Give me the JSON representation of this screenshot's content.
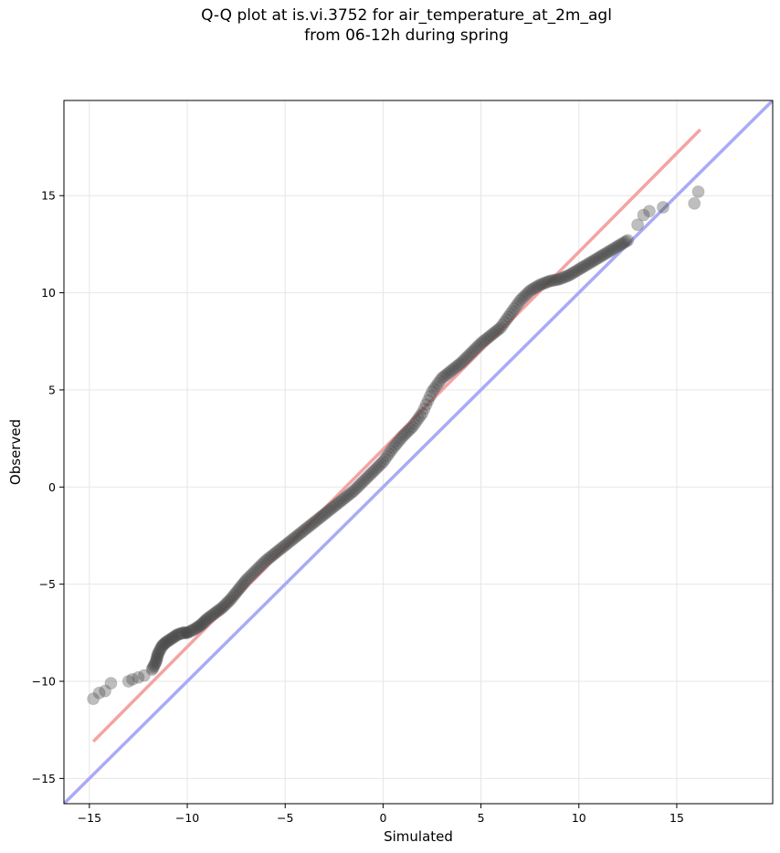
{
  "chart_data": {
    "type": "scatter",
    "title_line1": "Q-Q plot at is.vi.3752 for air_temperature_at_2m_agl",
    "title_line2": "from 06-12h during spring",
    "xlabel": "Simulated",
    "ylabel": "Observed",
    "xlim": [
      -16.3,
      19.9
    ],
    "ylim": [
      -16.3,
      19.9
    ],
    "xticks": [
      -15,
      -10,
      -5,
      0,
      5,
      10,
      15
    ],
    "yticks": [
      -15,
      -10,
      -5,
      0,
      5,
      10,
      15
    ],
    "xtick_labels": [
      "−15",
      "−10",
      "−5",
      "0",
      "5",
      "10",
      "15"
    ],
    "ytick_labels": [
      "−15",
      "−10",
      "−5",
      "0",
      "5",
      "10",
      "15"
    ],
    "grid": true,
    "quantile_points": {
      "x": [
        -14.8,
        -14.5,
        -14.2,
        -13.9,
        -13.0,
        -12.8,
        -12.5,
        -12.2,
        -11.8,
        -11.6,
        -11.5,
        -11.3,
        -11.1,
        -10.8,
        -10.5,
        -10.2,
        -10.0,
        -9.6,
        -9.3,
        -9.0,
        -8.6,
        -8.2,
        -7.8,
        -7.4,
        -7.0,
        -6.5,
        -6.0,
        -5.5,
        -5.0,
        -4.5,
        -4.0,
        -3.5,
        -3.0,
        -2.5,
        -2.0,
        -1.5,
        -1.0,
        -0.5,
        0.0,
        0.5,
        1.0,
        1.5,
        2.0,
        2.5,
        3.0,
        3.5,
        4.0,
        4.5,
        5.0,
        5.5,
        6.0,
        6.5,
        7.0,
        7.5,
        8.0,
        8.5,
        9.0,
        9.5,
        10.0,
        10.5,
        11.0,
        11.5,
        12.0,
        12.5,
        13.0,
        13.3,
        13.6,
        14.3,
        15.9,
        16.1
      ],
      "y": [
        -10.9,
        -10.6,
        -10.5,
        -10.1,
        -10.0,
        -9.9,
        -9.8,
        -9.7,
        -9.4,
        -9.0,
        -8.6,
        -8.2,
        -8.0,
        -7.8,
        -7.6,
        -7.5,
        -7.5,
        -7.3,
        -7.1,
        -6.8,
        -6.5,
        -6.2,
        -5.8,
        -5.3,
        -4.8,
        -4.3,
        -3.8,
        -3.4,
        -3.0,
        -2.6,
        -2.2,
        -1.8,
        -1.4,
        -1.0,
        -0.6,
        -0.2,
        0.3,
        0.8,
        1.3,
        2.0,
        2.6,
        3.1,
        3.8,
        4.9,
        5.6,
        6.0,
        6.4,
        6.9,
        7.4,
        7.8,
        8.2,
        8.9,
        9.6,
        10.1,
        10.4,
        10.6,
        10.7,
        10.9,
        11.2,
        11.5,
        11.8,
        12.1,
        12.4,
        12.7,
        13.5,
        14.0,
        14.2,
        14.4,
        14.6,
        15.2
      ]
    },
    "fit_line": {
      "x": [
        -14.8,
        16.2
      ],
      "y": [
        -13.1,
        18.4
      ],
      "color": "#f4a3a3"
    },
    "identity_line": {
      "x": [
        -16.3,
        19.9
      ],
      "y": [
        -16.3,
        19.9
      ],
      "color": "#aaaaf5"
    },
    "point_color": "#444444"
  }
}
